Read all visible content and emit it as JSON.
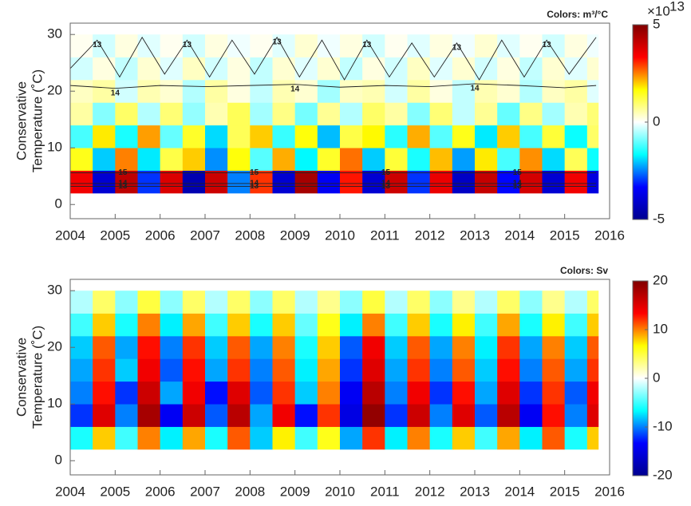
{
  "chart_data": [
    {
      "type": "heatmap",
      "title": "Colors: m³/°C",
      "ylabel": [
        "Conservative",
        "Temperature (˚C)"
      ],
      "x_edges": [
        2004,
        2004.5,
        2005,
        2005.5,
        2006,
        2006.5,
        2007,
        2007.5,
        2008,
        2008.5,
        2009,
        2009.5,
        2010,
        2010.5,
        2011,
        2011.5,
        2012,
        2012.5,
        2013,
        2013.5,
        2014,
        2014.5,
        2015,
        2015.5,
        2015.75
      ],
      "y_edges": [
        2,
        6,
        10,
        14,
        18,
        22,
        26,
        30
      ],
      "z": [
        [
          3.5,
          -4,
          4.2,
          -3,
          3.8,
          -4.5,
          4,
          -2.5,
          3,
          -4,
          4.5,
          -3.5,
          3.2,
          -4,
          4,
          -3,
          3.6,
          -4.2,
          4.1,
          -3.3,
          3.9,
          -4,
          3.5,
          -3.8
        ],
        [
          1.5,
          -2,
          2.5,
          -1.8,
          1.2,
          2,
          -2.4,
          1.6,
          -1.1,
          2.2,
          -1.7,
          1.4,
          2.6,
          -2,
          1.3,
          -1.5,
          2.1,
          -2.3,
          1.8,
          -1.2,
          2.4,
          -1.9,
          1.1,
          -1.6
        ],
        [
          -1.2,
          1.8,
          -1.5,
          2.3,
          -1,
          1.4,
          -1.9,
          1.1,
          2,
          -1.3,
          1.6,
          -2.1,
          1.2,
          1.7,
          -1.4,
          2.2,
          -1.1,
          1.5,
          -1.8,
          2,
          -1.2,
          1.3,
          -1.6,
          1
        ],
        [
          0.6,
          -0.8,
          1,
          -0.5,
          0.9,
          -0.7,
          0.5,
          1.1,
          -0.6,
          0.8,
          -0.9,
          0.7,
          -0.5,
          1,
          0.6,
          -0.8,
          0.9,
          -0.4,
          0.7,
          -1,
          0.8,
          -0.6,
          0.5,
          0.9
        ],
        [
          0.4,
          0.6,
          -0.3,
          0.5,
          0.3,
          -0.5,
          0.6,
          0.2,
          -0.4,
          0.5,
          0.3,
          -0.6,
          0.4,
          0.5,
          -0.3,
          0.6,
          0.2,
          -0.4,
          0.5,
          0.3,
          -0.5,
          0.4,
          0.6,
          -0.2
        ],
        [
          -0.3,
          0.2,
          -0.4,
          0.3,
          -0.2,
          0.4,
          -0.3,
          0.2,
          -0.4,
          0.3,
          -0.2,
          0.3,
          -0.4,
          0.2,
          -0.3,
          0.4,
          -0.2,
          0.3,
          -0.3,
          0.2,
          -0.4,
          0.3,
          -0.2,
          0.3
        ],
        [
          0.1,
          -0.3,
          0.2,
          -0.2,
          0.1,
          -0.3,
          0.2,
          -0.1,
          0.1,
          -0.2,
          0.3,
          -0.1,
          0.2,
          -0.3,
          0.1,
          -0.2,
          0.2,
          -0.1,
          0.3,
          -0.2,
          0.1,
          -0.3,
          0.2,
          -0.1
        ]
      ],
      "xlim": [
        2004,
        2016
      ],
      "xticks": [
        2004,
        2005,
        2006,
        2007,
        2008,
        2009,
        2010,
        2011,
        2012,
        2013,
        2014,
        2015,
        2016
      ],
      "ylim": [
        -2.5,
        32
      ],
      "yticks": [
        0,
        10,
        20,
        30
      ],
      "clim": [
        -5,
        5
      ],
      "cticks": [
        -5,
        0,
        5
      ],
      "colorbar_multiplier": "×10",
      "colorbar_exponent": "13",
      "colormap": [
        "#00008f",
        "#0000ff",
        "#00ffff",
        "#ffffff",
        "#ffff00",
        "#ff0000",
        "#800000"
      ],
      "contours": [
        {
          "level": 13,
          "x": [
            2004,
            2004.6,
            2005.1,
            2005.6,
            2006.1,
            2006.6,
            2007.1,
            2007.6,
            2008.1,
            2008.6,
            2009.1,
            2009.6,
            2010.1,
            2010.6,
            2011.1,
            2011.6,
            2012.1,
            2012.6,
            2013.1,
            2013.6,
            2014.1,
            2014.6,
            2015.1,
            2015.7
          ],
          "y": [
            24,
            29,
            22.5,
            29.5,
            23,
            29,
            22.5,
            29,
            23,
            29.5,
            22.5,
            29,
            22,
            29,
            22.5,
            28.5,
            22.5,
            28.5,
            22,
            29,
            22.5,
            29,
            23,
            29.5
          ]
        },
        {
          "level": 14,
          "x": [
            2004,
            2005,
            2006,
            2007,
            2008,
            2009,
            2010,
            2011,
            2012,
            2013,
            2014,
            2015,
            2015.7
          ],
          "y": [
            21,
            20.5,
            21,
            20.8,
            21,
            21.2,
            20.7,
            21,
            20.8,
            21.3,
            21,
            20.6,
            21
          ]
        },
        {
          "level": 15,
          "x": [
            2004,
            2015.7
          ],
          "y": [
            5.6,
            5.6
          ]
        },
        {
          "level": 14,
          "x": [
            2004,
            2015.7
          ],
          "y": [
            3.7,
            3.7
          ]
        },
        {
          "level": 13,
          "x": [
            2004,
            2015.7
          ],
          "y": [
            3.2,
            3.2
          ]
        }
      ]
    },
    {
      "type": "heatmap",
      "title": "Colors: Sv",
      "ylabel": [
        "Conservative",
        "Temperature (˚C)"
      ],
      "x_edges": [
        2004,
        2004.5,
        2005,
        2005.5,
        2006,
        2006.5,
        2007,
        2007.5,
        2008,
        2008.5,
        2009,
        2009.5,
        2010,
        2010.5,
        2011,
        2011.5,
        2012,
        2012.5,
        2013,
        2013.5,
        2014,
        2014.5,
        2015,
        2015.5,
        2015.75
      ],
      "y_edges": [
        2,
        6,
        10,
        14,
        18,
        22,
        26,
        30
      ],
      "z": [
        [
          -6,
          8,
          -5,
          10,
          -7,
          9,
          -6,
          11,
          -8,
          7,
          -5,
          6,
          -9,
          12,
          -7,
          10,
          -6,
          8,
          -5,
          9,
          -7,
          11,
          -6,
          8
        ],
        [
          -12,
          15,
          -10,
          18,
          -14,
          16,
          -11,
          17,
          -9,
          14,
          -13,
          12,
          -15,
          19,
          -12,
          16,
          -10,
          15,
          -11,
          17,
          -14,
          13,
          -10,
          15
        ],
        [
          -10,
          13,
          -12,
          16,
          -9,
          14,
          -13,
          15,
          -11,
          12,
          -8,
          10,
          -14,
          17,
          -10,
          14,
          -12,
          13,
          -9,
          15,
          -12,
          12,
          -11,
          14
        ],
        [
          -9,
          12,
          -8,
          14,
          -11,
          13,
          -9,
          12,
          -10,
          11,
          -7,
          9,
          -12,
          15,
          -9,
          12,
          -10,
          11,
          -8,
          13,
          -10,
          11,
          -9,
          12
        ],
        [
          -8,
          11,
          -9,
          13,
          -10,
          12,
          -8,
          11,
          -9,
          10,
          -6,
          8,
          -11,
          14,
          -8,
          11,
          -9,
          10,
          -7,
          12,
          -9,
          10,
          -8,
          11
        ],
        [
          -5,
          8,
          -6,
          10,
          -7,
          9,
          -5,
          8,
          -6,
          8,
          -4,
          6,
          -7,
          10,
          -5,
          8,
          -6,
          7,
          -5,
          9,
          -6,
          7,
          -5,
          8
        ],
        [
          -2,
          4,
          -3,
          5,
          -3,
          4,
          -2,
          4,
          -3,
          4,
          -2,
          3,
          -3,
          5,
          -2,
          4,
          -3,
          3,
          -2,
          4,
          -3,
          3,
          -2,
          4
        ]
      ],
      "xlim": [
        2004,
        2016
      ],
      "xticks": [
        2004,
        2005,
        2006,
        2007,
        2008,
        2009,
        2010,
        2011,
        2012,
        2013,
        2014,
        2015,
        2016
      ],
      "ylim": [
        -2.5,
        32
      ],
      "yticks": [
        0,
        10,
        20,
        30
      ],
      "clim": [
        -20,
        20
      ],
      "cticks": [
        -20,
        -10,
        0,
        10,
        20
      ],
      "colormap": [
        "#00008f",
        "#0000ff",
        "#00ffff",
        "#ffffff",
        "#ffff00",
        "#ff0000",
        "#800000"
      ]
    }
  ]
}
